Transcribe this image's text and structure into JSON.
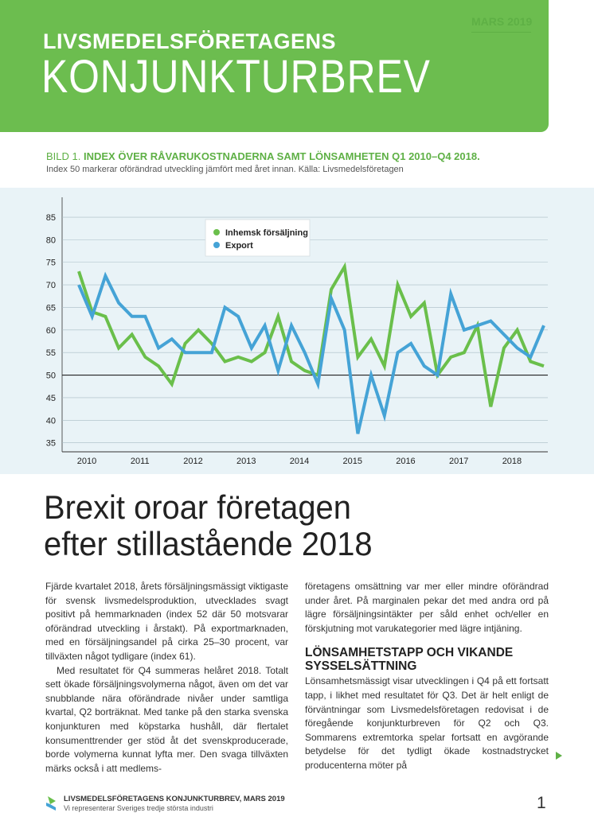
{
  "header": {
    "supertitle": "LIVSMEDELSFÖRETAGENS",
    "title": "KONJUNKTURBREV",
    "date": "MARS 2019"
  },
  "figure": {
    "label": "BILD 1.",
    "title": "INDEX ÖVER RÅVARUKOSTNADERNA SAMT LÖNSAMHETEN Q1 2010–Q4 2018.",
    "subtitle": "Index 50 markerar oförändrad utveckling jämfört med året innan. Källa: Livsmedelsföretagen"
  },
  "chart_data": {
    "type": "line",
    "x": [
      "2010 Q1",
      "2010 Q2",
      "2010 Q3",
      "2010 Q4",
      "2011 Q1",
      "2011 Q2",
      "2011 Q3",
      "2011 Q4",
      "2012 Q1",
      "2012 Q2",
      "2012 Q3",
      "2012 Q4",
      "2013 Q1",
      "2013 Q2",
      "2013 Q3",
      "2013 Q4",
      "2014 Q1",
      "2014 Q2",
      "2014 Q3",
      "2014 Q4",
      "2015 Q1",
      "2015 Q2",
      "2015 Q3",
      "2015 Q4",
      "2016 Q1",
      "2016 Q2",
      "2016 Q3",
      "2016 Q4",
      "2017 Q1",
      "2017 Q2",
      "2017 Q3",
      "2017 Q4",
      "2018 Q1",
      "2018 Q2",
      "2018 Q3",
      "2018 Q4"
    ],
    "x_tick_labels": [
      "2010",
      "2011",
      "2012",
      "2013",
      "2014",
      "2015",
      "2016",
      "2017",
      "2018"
    ],
    "y_ticks": [
      35,
      40,
      45,
      50,
      55,
      60,
      65,
      70,
      75,
      80,
      85
    ],
    "ylim": [
      33,
      88
    ],
    "reference_line": 50,
    "grid": true,
    "legend_position": "top-left",
    "series": [
      {
        "name": "Inhemsk försäljning",
        "color": "#6abf4b",
        "values": [
          73,
          64,
          63,
          56,
          59,
          54,
          52,
          48,
          57,
          60,
          57,
          53,
          54,
          53,
          55,
          63,
          53,
          51,
          50,
          69,
          74,
          54,
          58,
          52,
          70,
          63,
          66,
          50,
          54,
          55,
          61,
          43,
          56,
          60,
          53,
          52
        ]
      },
      {
        "name": "Export",
        "color": "#45a3d6",
        "values": [
          70,
          63,
          72,
          66,
          63,
          63,
          56,
          58,
          55,
          55,
          55,
          65,
          63,
          56,
          61,
          51,
          61,
          55,
          48,
          67,
          60,
          37,
          50,
          41,
          55,
          57,
          52,
          50,
          68,
          60,
          61,
          62,
          59,
          56,
          54,
          61
        ]
      }
    ]
  },
  "article": {
    "headline_line1": "Brexit oroar företagen",
    "headline_line2": "efter stillastående 2018",
    "col1_p1": "Fjärde kvartalet 2018, årets försäljningsmässigt viktigaste för svensk livsmedelsproduktion, utvecklades svagt positivt på hemmarknaden (index 52 där 50 motsvarar oförändrad utveckling i årstakt). På exportmarknaden, med en försäljningsandel på cirka 25–30 procent, var tillväxten något tydligare (index 61).",
    "col1_p2": "Med resultatet för Q4 summeras helåret 2018. Totalt sett ökade försäljningsvolymerna något, även om det var snubblande nära oförändrade nivåer under samtliga kvartal, Q2 borträknat. Med tanke på den starka svenska konjunkturen med köpstarka hushåll, där flertalet konsumenttrender ger stöd åt det svenskproducerade, borde volymerna kunnat lyfta mer. Den svaga tillväxten märks också i att medlems-",
    "col2_p1": "företagens omsättning var mer eller mindre oförändrad under året. På marginalen pekar det med andra ord på lägre försäljningsintäkter per såld enhet och/eller en förskjutning mot varukategorier med lägre intjäning.",
    "subhead": "LÖNSAMHETSTAPP OCH VIKANDE SYSSELSÄTTNING",
    "col2_p2": "Lönsamhetsmässigt visar utvecklingen i Q4 på ett fortsatt tapp, i likhet med resultatet för Q3. Det är helt enligt de förväntningar som Livsmedelsföretagen redovisat i de föregående konjunkturbreven för Q2 och Q3. Sommarens extremtorka spelar fortsatt en avgörande betydelse för det tydligt ökade kostnadstrycket producenterna möter på"
  },
  "footer": {
    "title": "LIVSMEDELSFÖRETAGENS KONJUNKTURBREV, MARS 2019",
    "subtitle": "Vi representerar Sveriges tredje största industri",
    "page_number": "1"
  }
}
